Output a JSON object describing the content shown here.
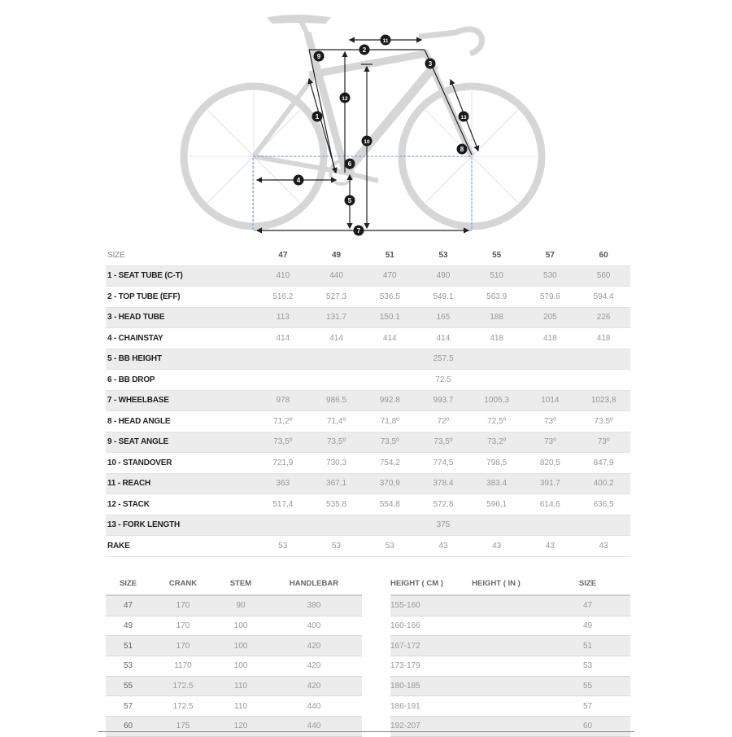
{
  "diagram": {
    "markers": [
      "1",
      "2",
      "3",
      "4",
      "5",
      "6",
      "7",
      "8",
      "9",
      "10",
      "11",
      "12",
      "13"
    ],
    "colors": {
      "bike": "#d4d4d4",
      "dimension": "#222222",
      "dashed": "#5aa0d8"
    }
  },
  "geometry": {
    "size_label": "SIZE",
    "sizes": [
      "47",
      "49",
      "51",
      "53",
      "55",
      "57",
      "60"
    ],
    "rows": [
      {
        "label": "1 - SEAT TUBE (C-T)",
        "values": [
          "410",
          "440",
          "470",
          "490",
          "510",
          "530",
          "560"
        ]
      },
      {
        "label": "2 - TOP TUBE (EFF)",
        "values": [
          "516.2",
          "527.3",
          "536.5",
          "549.1",
          "563.9",
          "579.6",
          "594.4"
        ]
      },
      {
        "label": "3 - HEAD TUBE",
        "values": [
          "113",
          "131.7",
          "150.1",
          "165",
          "188",
          "205",
          "226"
        ]
      },
      {
        "label": "4 - CHAINSTAY",
        "values": [
          "414",
          "414",
          "414",
          "414",
          "418",
          "418",
          "418"
        ]
      },
      {
        "label": "5 - BB HEIGHT",
        "all": "257.5"
      },
      {
        "label": "6 - BB DROP",
        "all": "72.5"
      },
      {
        "label": "7 - WHEELBASE",
        "values": [
          "978",
          "986.5",
          "992.8",
          "993.7",
          "1005,3",
          "1014",
          "1023,8"
        ]
      },
      {
        "label": "8 - HEAD ANGLE",
        "values": [
          "71,2º",
          "71,4º",
          "71,8º",
          "72º",
          "72,5º",
          "73º",
          "73.5º"
        ]
      },
      {
        "label": "9 - SEAT ANGLE",
        "values": [
          "73,5º",
          "73,5º",
          "73,5º",
          "73,5º",
          "73,2º",
          "73º",
          "73º"
        ]
      },
      {
        "label": "10 - STANDOVER",
        "values": [
          "721,9",
          "730,3",
          "754,2",
          "774,5",
          "798,5",
          "820,5",
          "847,9"
        ]
      },
      {
        "label": "11 - REACH",
        "values": [
          "363",
          "367,1",
          "370,9",
          "378.4",
          "383.4",
          "391.7",
          "400.2"
        ]
      },
      {
        "label": "12 - STACK",
        "values": [
          "517,4",
          "535,8",
          "554,8",
          "572,8",
          "596,1",
          "614,6",
          "636,5"
        ]
      },
      {
        "label": "13 - FORK LENGTH",
        "all": "375"
      },
      {
        "label": "RAKE",
        "values": [
          "53",
          "53",
          "53",
          "43",
          "43",
          "43",
          "43"
        ]
      }
    ]
  },
  "components": {
    "headers": [
      "SIZE",
      "CRANK",
      "STEM",
      "HANDLEBAR"
    ],
    "rows": [
      [
        "47",
        "170",
        "90",
        "380"
      ],
      [
        "49",
        "170",
        "100",
        "400"
      ],
      [
        "51",
        "170",
        "100",
        "420"
      ],
      [
        "53",
        "1170",
        "100",
        "420"
      ],
      [
        "55",
        "172.5",
        "110",
        "420"
      ],
      [
        "57",
        "172.5",
        "110",
        "440"
      ],
      [
        "60",
        "175",
        "120",
        "440"
      ]
    ]
  },
  "fit": {
    "headers": [
      "HEIGHT ( CM )",
      "HEIGHT ( IN )",
      "SIZE"
    ],
    "rows": [
      [
        "155-160",
        "",
        "47"
      ],
      [
        "160-166",
        "",
        "49"
      ],
      [
        "167-172",
        "",
        "51"
      ],
      [
        "173-179",
        "",
        "53"
      ],
      [
        "180-185",
        "",
        "55"
      ],
      [
        "186-191",
        "",
        "57"
      ],
      [
        "192-207",
        "",
        "60"
      ]
    ]
  }
}
